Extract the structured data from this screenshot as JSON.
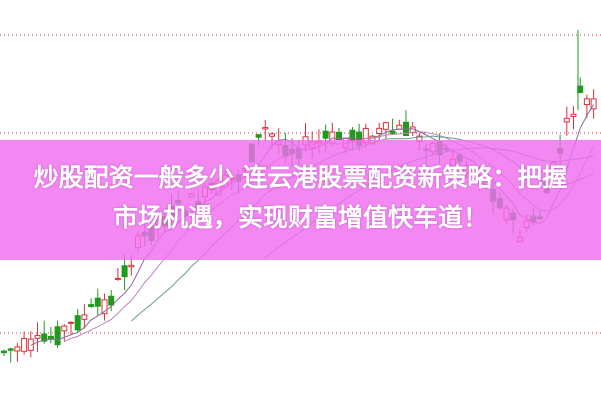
{
  "title": "炒股配资一般多少 连云港股票配资新策略：把握市场机遇，实现财富增值快车道！",
  "title_line1": "炒股配资一般多少 连云港股票配资新策略：把握",
  "title_line2": "市场机遇，实现财富增值快车道！",
  "colors": {
    "up": "#e0303a",
    "down": "#1e9a1e",
    "banner": "#f06ef0",
    "ma": "#9966aa"
  }
}
